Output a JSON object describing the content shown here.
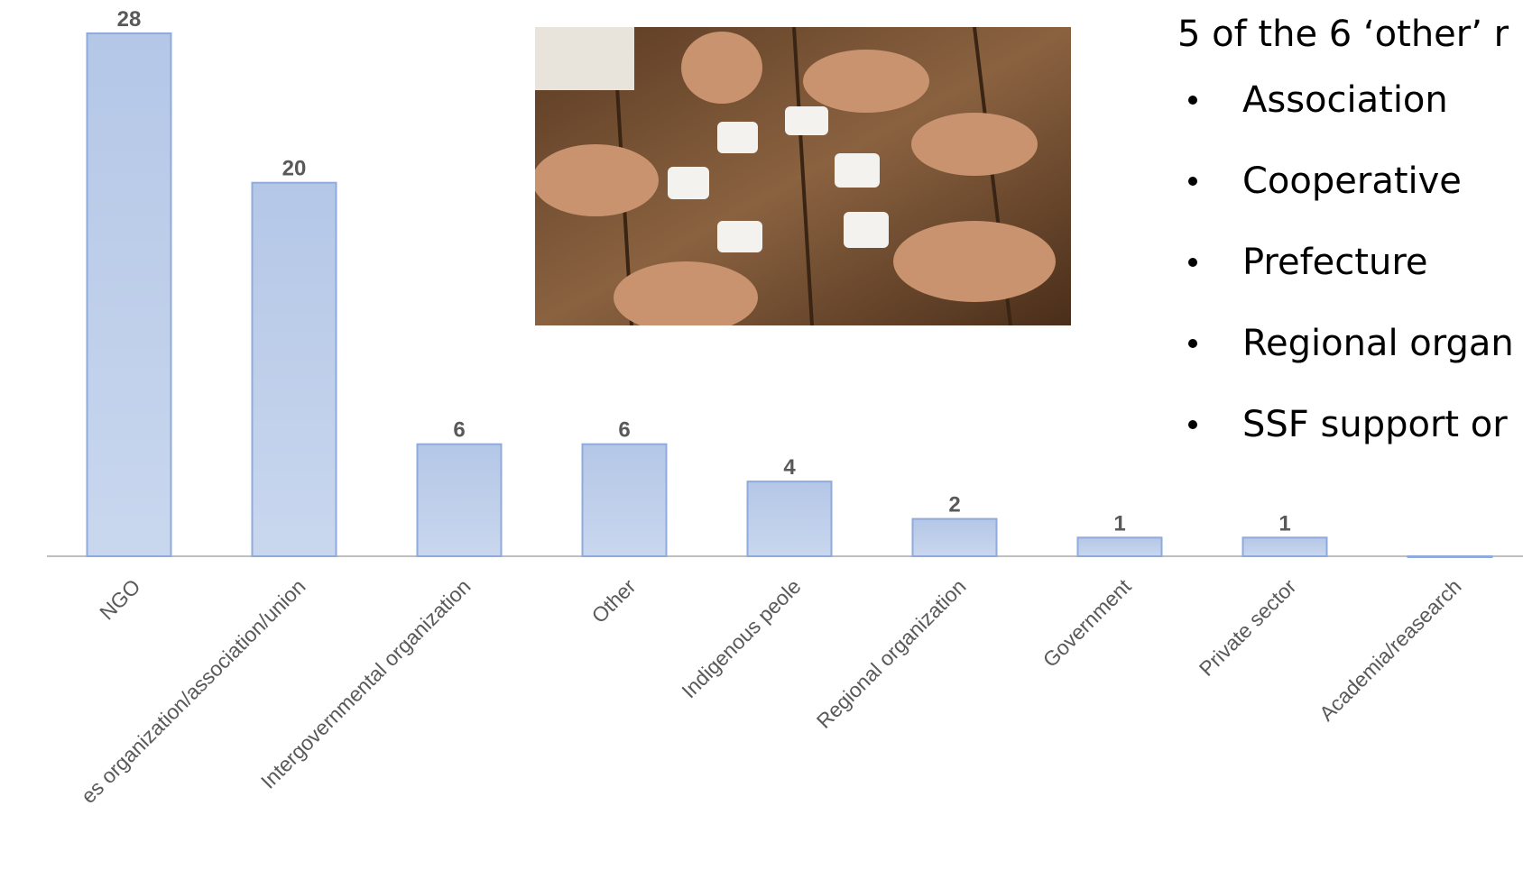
{
  "chart_data": {
    "type": "bar",
    "categories": [
      "NGO",
      "es organization/association/union",
      "Intergovernmental organization",
      "Other",
      "Indigenous peole",
      "Regional organization",
      "Government",
      "Private sector",
      "Academia/reasearch"
    ],
    "values": [
      28,
      20,
      6,
      6,
      4,
      2,
      1,
      1,
      0
    ],
    "color": "#b4c7e7",
    "ylim": [
      0,
      28
    ]
  },
  "text_panel": {
    "heading": "5 of the 6 ‘other’ r",
    "items": [
      "Association",
      "Cooperative",
      "Prefecture",
      "Regional organ",
      "SSF support or"
    ]
  }
}
